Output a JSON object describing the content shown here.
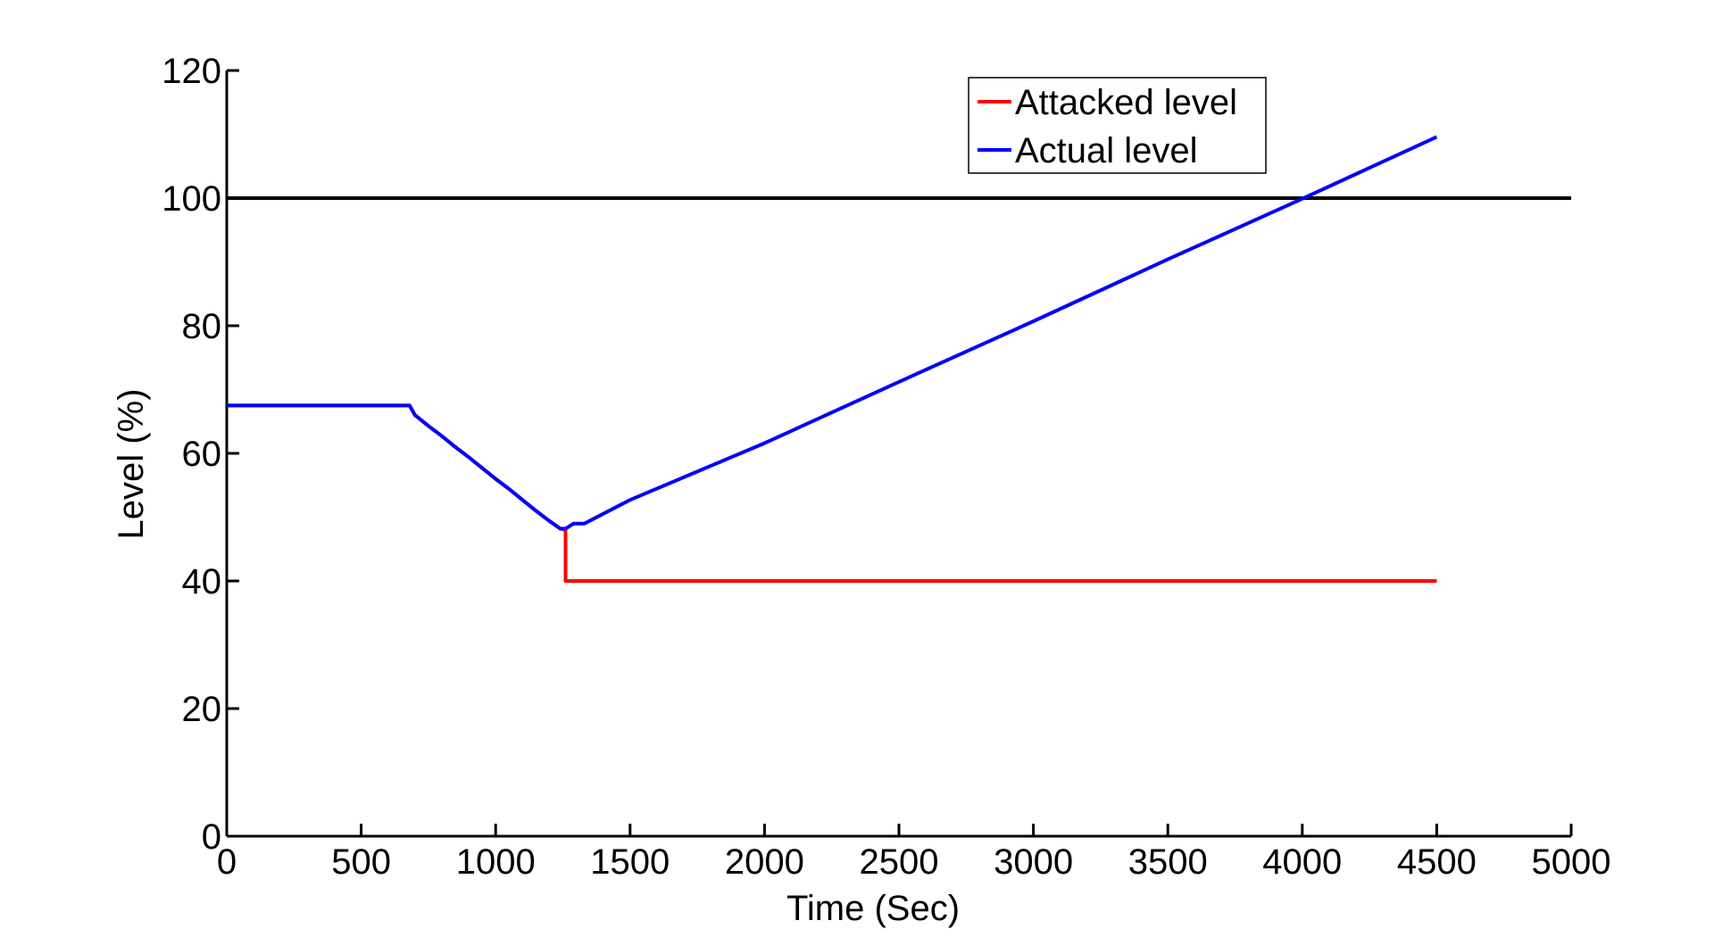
{
  "chart_data": {
    "type": "line",
    "title": "",
    "xlabel": "Time (Sec)",
    "ylabel": "Level (%)",
    "xlim": [
      0,
      5000
    ],
    "ylim": [
      0,
      120
    ],
    "xticks": [
      0,
      500,
      1000,
      1500,
      2000,
      2500,
      3000,
      3500,
      4000,
      4500,
      5000
    ],
    "yticks": [
      0,
      20,
      40,
      60,
      80,
      100,
      120
    ],
    "grid": false,
    "legend_position": "top-right",
    "reference_line": {
      "y": 100,
      "x": [
        0,
        5000
      ],
      "color": "#000000"
    },
    "series": [
      {
        "name": "Attacked level",
        "color": "#ff0000",
        "x": [
          0,
          680,
          700,
          750,
          800,
          850,
          900,
          950,
          1000,
          1050,
          1100,
          1150,
          1200,
          1240,
          1260,
          1260,
          4500
        ],
        "y": [
          67.5,
          67.5,
          66.0,
          64.3,
          62.7,
          61.0,
          59.4,
          57.7,
          56.0,
          54.4,
          52.7,
          51.0,
          49.4,
          48.2,
          48.0,
          40.0,
          40.0
        ]
      },
      {
        "name": "Actual level",
        "color": "#0000ff",
        "x": [
          0,
          680,
          700,
          750,
          800,
          850,
          900,
          950,
          1000,
          1050,
          1100,
          1150,
          1200,
          1240,
          1260,
          1290,
          1330,
          1500,
          2000,
          2500,
          3000,
          3500,
          3900,
          4000,
          4500
        ],
        "y": [
          67.5,
          67.5,
          66.0,
          64.3,
          62.7,
          61.0,
          59.4,
          57.7,
          56.0,
          54.4,
          52.7,
          51.0,
          49.4,
          48.2,
          48.2,
          49.0,
          49.0,
          52.7,
          61.6,
          71.2,
          80.7,
          90.4,
          98.0,
          99.9,
          109.6
        ]
      }
    ]
  }
}
